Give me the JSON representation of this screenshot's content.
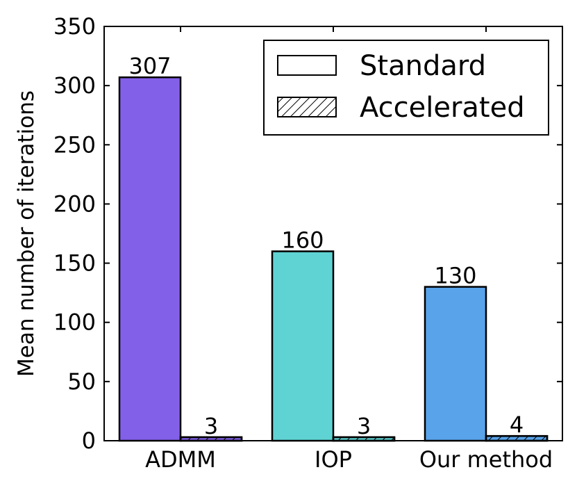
{
  "chart_data": {
    "type": "bar",
    "title": "",
    "xlabel": "",
    "ylabel": "Mean number of iterations",
    "ylim": [
      0,
      350
    ],
    "yticks": [
      0,
      50,
      100,
      150,
      200,
      250,
      300,
      350
    ],
    "categories": [
      "ADMM",
      "IOP",
      "Our method"
    ],
    "category_colors": [
      "#8360e8",
      "#5fd3d3",
      "#58a3ea"
    ],
    "series": [
      {
        "name": "Standard",
        "pattern": "solid",
        "values": [
          307,
          160,
          130
        ]
      },
      {
        "name": "Accelerated",
        "pattern": "hatch",
        "values": [
          3,
          3,
          4
        ]
      }
    ],
    "data_labels": true,
    "legend_position": "top-right",
    "grid": false
  }
}
